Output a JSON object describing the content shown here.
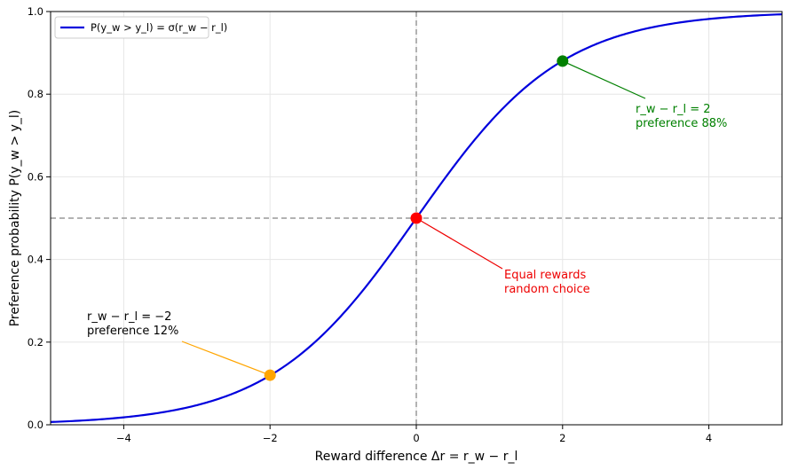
{
  "chart_data": {
    "type": "line",
    "xlabel": "Reward difference Δr = r_w − r_l",
    "ylabel": "Preference probability P(y_w > y_l)",
    "xlim": [
      -5,
      5
    ],
    "ylim": [
      0,
      1
    ],
    "x_ticks": [
      -4,
      -2,
      0,
      2,
      4
    ],
    "y_ticks": [
      0.0,
      0.2,
      0.4,
      0.6,
      0.8,
      1.0
    ],
    "x_tick_labels": [
      "−4",
      "−2",
      "0",
      "2",
      "4"
    ],
    "y_tick_labels": [
      "0.0",
      "0.2",
      "0.4",
      "0.6",
      "0.8",
      "1.0"
    ],
    "grid": true,
    "legend_position": "top-left",
    "series": [
      {
        "name": "P(y_w > y_l) = σ(r_w − r_l)",
        "function": "sigmoid",
        "x_range": [
          -5,
          5
        ],
        "color": "#0000dd"
      }
    ],
    "reference_lines": [
      {
        "orientation": "horizontal",
        "value": 0.5,
        "color": "#999999"
      },
      {
        "orientation": "vertical",
        "value": 0,
        "color": "#999999"
      }
    ],
    "points": [
      {
        "x": -2,
        "y": 0.12,
        "color": "#ffa500",
        "label_line1": "r_w − r_l = −2",
        "label_line2": "preference 12%",
        "text_color": "#000000"
      },
      {
        "x": 0,
        "y": 0.5,
        "color": "#ff0000",
        "label_line1": "Equal rewards",
        "label_line2": "random choice",
        "text_color": "#ee0000"
      },
      {
        "x": 2,
        "y": 0.88,
        "color": "#008000",
        "label_line1": "r_w − r_l = 2",
        "label_line2": "preference 88%",
        "text_color": "#008000"
      }
    ]
  }
}
